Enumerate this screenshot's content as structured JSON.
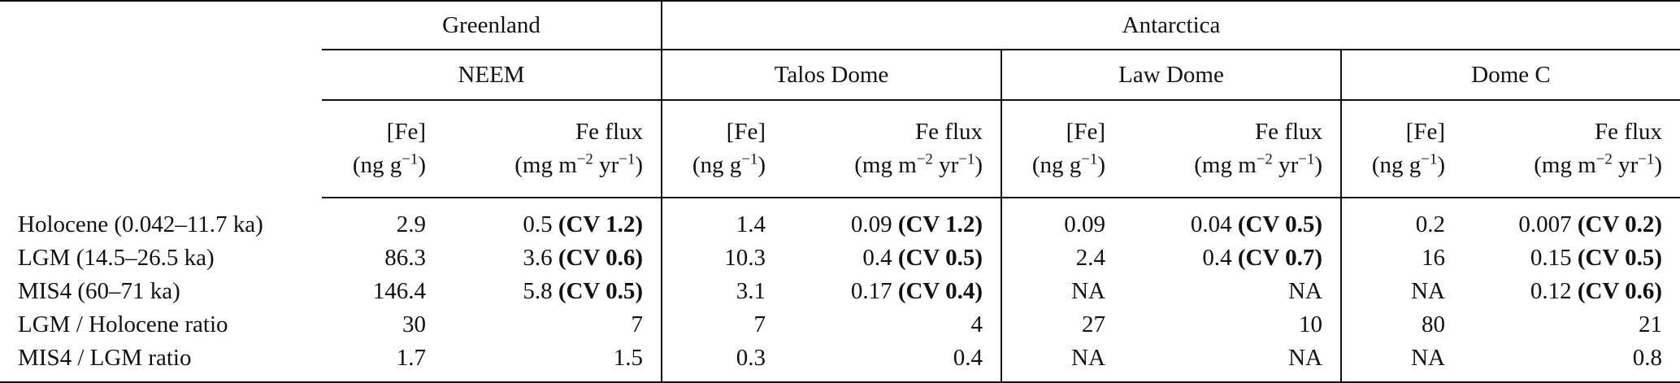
{
  "header": {
    "regions": [
      "Greenland",
      "Antarctica"
    ],
    "cores": [
      "NEEM",
      "Talos Dome",
      "Law Dome",
      "Dome C"
    ],
    "fe_conc": {
      "name": "[Fe]",
      "unit_pre": "(ng g",
      "unit_exp": "−1",
      "unit_post": ")"
    },
    "fe_flux": {
      "name": "Fe flux",
      "unit_a": "(mg m",
      "unit_a_exp": "−2",
      "unit_b": " yr",
      "unit_b_exp": "−1",
      "unit_post": ")"
    }
  },
  "rows": [
    {
      "label": "Holocene (0.042–11.7 ka)",
      "cells": [
        {
          "v": "2.9"
        },
        {
          "v": "0.5",
          "cv": "(CV 1.2)"
        },
        {
          "v": "1.4"
        },
        {
          "v": "0.09",
          "cv": "(CV 1.2)"
        },
        {
          "v": "0.09"
        },
        {
          "v": "0.04",
          "cv": "(CV 0.5)"
        },
        {
          "v": "0.2"
        },
        {
          "v": "0.007",
          "cv": "(CV 0.2)"
        }
      ]
    },
    {
      "label": "LGM (14.5–26.5 ka)",
      "cells": [
        {
          "v": "86.3"
        },
        {
          "v": "3.6",
          "cv": "(CV 0.6)"
        },
        {
          "v": "10.3"
        },
        {
          "v": "0.4",
          "cv": "(CV 0.5)"
        },
        {
          "v": "2.4"
        },
        {
          "v": "0.4",
          "cv": "(CV 0.7)"
        },
        {
          "v": "16"
        },
        {
          "v": "0.15",
          "cv": "(CV 0.5)"
        }
      ]
    },
    {
      "label": "MIS4 (60–71 ka)",
      "cells": [
        {
          "v": "146.4"
        },
        {
          "v": "5.8",
          "cv": "(CV 0.5)"
        },
        {
          "v": "3.1"
        },
        {
          "v": "0.17",
          "cv": "(CV 0.4)"
        },
        {
          "v": "NA"
        },
        {
          "v": "NA"
        },
        {
          "v": "NA"
        },
        {
          "v": "0.12",
          "cv": "(CV 0.6)"
        }
      ]
    },
    {
      "label": "LGM / Holocene ratio",
      "cells": [
        {
          "v": "30"
        },
        {
          "v": "7"
        },
        {
          "v": "7"
        },
        {
          "v": "4"
        },
        {
          "v": "27"
        },
        {
          "v": "10"
        },
        {
          "v": "80"
        },
        {
          "v": "21"
        }
      ]
    },
    {
      "label": "MIS4 / LGM ratio",
      "cells": [
        {
          "v": "1.7"
        },
        {
          "v": "1.5"
        },
        {
          "v": "0.3"
        },
        {
          "v": "0.4"
        },
        {
          "v": "NA"
        },
        {
          "v": "NA"
        },
        {
          "v": "NA"
        },
        {
          "v": "0.8"
        }
      ]
    }
  ]
}
